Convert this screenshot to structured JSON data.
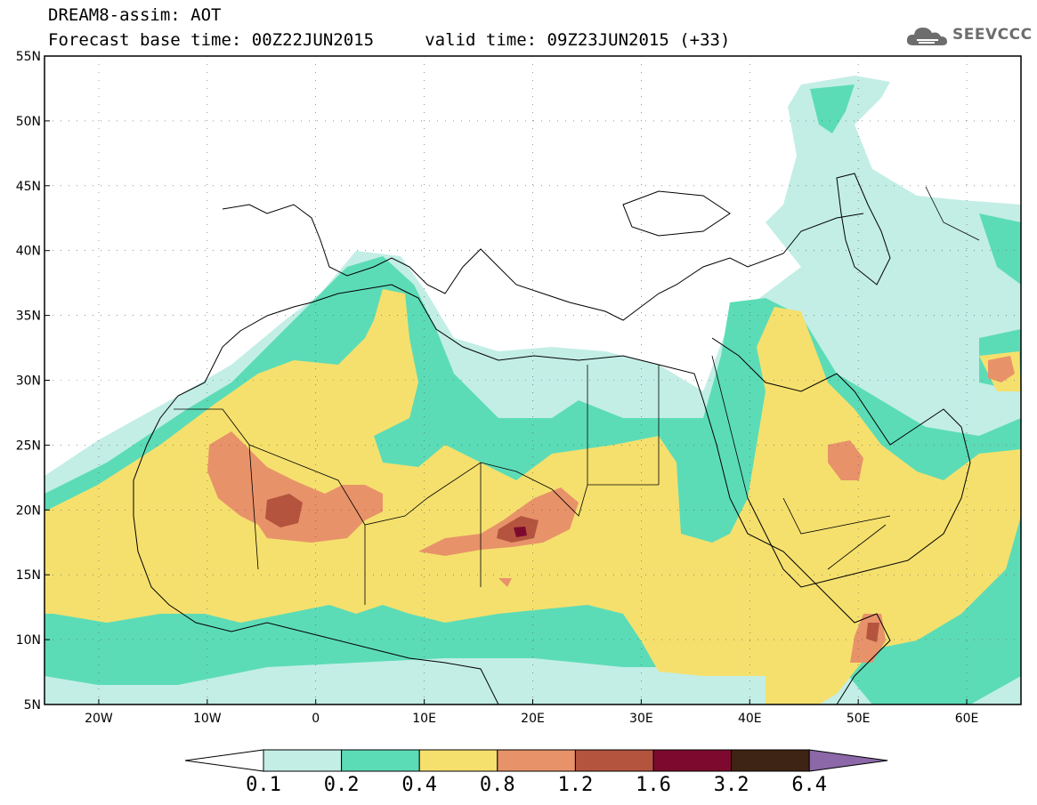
{
  "header": {
    "title_line1": "DREAM8-assim: AOT",
    "title_line2": "Forecast base time: 00Z22JUN2015     valid time: 09Z23JUN2015 (+33)"
  },
  "logo": {
    "text": "SEEVCCC",
    "icon": "cloud-logo-icon"
  },
  "map": {
    "projection": "cylindrical",
    "extent": {
      "lon_min": -25,
      "lon_max": 65,
      "lat_min": 5,
      "lat_max": 55
    },
    "lat_ticks": [
      {
        "value": 55,
        "label": "55N"
      },
      {
        "value": 50,
        "label": "50N"
      },
      {
        "value": 45,
        "label": "45N"
      },
      {
        "value": 40,
        "label": "40N"
      },
      {
        "value": 35,
        "label": "35N"
      },
      {
        "value": 30,
        "label": "30N"
      },
      {
        "value": 25,
        "label": "25N"
      },
      {
        "value": 20,
        "label": "20N"
      },
      {
        "value": 15,
        "label": "15N"
      },
      {
        "value": 10,
        "label": "10N"
      },
      {
        "value": 5,
        "label": "5N"
      }
    ],
    "lon_ticks": [
      {
        "value": -20,
        "label": "20W"
      },
      {
        "value": -10,
        "label": "10W"
      },
      {
        "value": 0,
        "label": "0"
      },
      {
        "value": 10,
        "label": "10E"
      },
      {
        "value": 20,
        "label": "20E"
      },
      {
        "value": 30,
        "label": "30E"
      },
      {
        "value": 40,
        "label": "40E"
      },
      {
        "value": 50,
        "label": "50E"
      },
      {
        "value": 60,
        "label": "60E"
      }
    ],
    "gridlines": true
  },
  "colorbar": {
    "thresholds": [
      "0.1",
      "0.2",
      "0.4",
      "0.8",
      "1.2",
      "1.6",
      "3.2",
      "6.4"
    ],
    "colors": [
      "#ffffff",
      "#c2eee6",
      "#5cdcb6",
      "#f5e06e",
      "#e8926a",
      "#b4543e",
      "#7d0a2e",
      "#3e2414",
      "#8c68a8"
    ]
  },
  "colors": {
    "aot_0_1": "#c2eee6",
    "aot_0_2": "#5cdcb6",
    "aot_0_4": "#f5e06e",
    "aot_0_8": "#e8926a",
    "aot_1_2": "#b4543e",
    "aot_1_6": "#7d0a2e"
  }
}
